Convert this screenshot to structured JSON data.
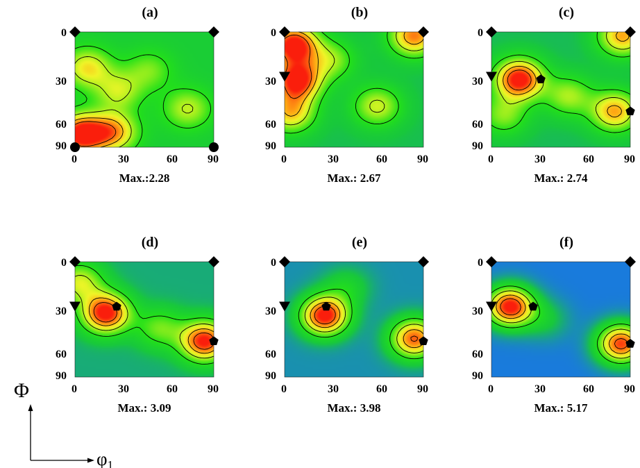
{
  "chart_data": [
    {
      "type": "heatmap",
      "title": "(a)",
      "subtitle": "Max.:2.28",
      "xlabel": "",
      "ylabel": "",
      "x_ticks": [
        "0",
        "30",
        "60",
        "90"
      ],
      "y_ticks": [
        "0",
        "30",
        "60",
        "90"
      ],
      "xlim": [
        0,
        90
      ],
      "ylim": [
        0,
        90
      ],
      "hotspots": [
        {
          "x": 4,
          "y": 80,
          "value": 2.28
        },
        {
          "x": 25,
          "y": 78,
          "value": 1.7
        },
        {
          "x": 8,
          "y": 28,
          "value": 1.5
        },
        {
          "x": 28,
          "y": 46,
          "value": 1.3
        },
        {
          "x": 73,
          "y": 60,
          "value": 1.3
        },
        {
          "x": 48,
          "y": 30,
          "value": 1.1
        }
      ],
      "markers": [
        {
          "shape": "diamond",
          "x": 0,
          "y": 0
        },
        {
          "shape": "diamond",
          "x": 90,
          "y": 0
        },
        {
          "shape": "circle",
          "x": 0,
          "y": 90
        },
        {
          "shape": "circle",
          "x": 90,
          "y": 90
        }
      ]
    },
    {
      "type": "heatmap",
      "title": "(b)",
      "subtitle": "Max.: 2.67",
      "xlabel": "",
      "ylabel": "",
      "x_ticks": [
        "0",
        "30",
        "60",
        "90"
      ],
      "y_ticks": [
        "0",
        "30",
        "60",
        "90"
      ],
      "xlim": [
        0,
        90
      ],
      "ylim": [
        0,
        90
      ],
      "hotspots": [
        {
          "x": 6,
          "y": 10,
          "value": 2.67
        },
        {
          "x": 8,
          "y": 38,
          "value": 2.6
        },
        {
          "x": 84,
          "y": 3,
          "value": 2.2
        },
        {
          "x": 4,
          "y": 63,
          "value": 1.9
        },
        {
          "x": 60,
          "y": 58,
          "value": 1.6
        },
        {
          "x": 30,
          "y": 22,
          "value": 1.4
        }
      ],
      "markers": [
        {
          "shape": "diamond",
          "x": 0,
          "y": 0
        },
        {
          "shape": "diamond",
          "x": 90,
          "y": 0
        },
        {
          "shape": "triangle",
          "x": 0,
          "y": 35
        }
      ]
    },
    {
      "type": "heatmap",
      "title": "(c)",
      "subtitle": "Max.: 2.74",
      "xlabel": "",
      "ylabel": "",
      "x_ticks": [
        "0",
        "30",
        "60",
        "90"
      ],
      "y_ticks": [
        "0",
        "30",
        "60",
        "90"
      ],
      "xlim": [
        0,
        90
      ],
      "ylim": [
        0,
        90
      ],
      "hotspots": [
        {
          "x": 18,
          "y": 37,
          "value": 2.74
        },
        {
          "x": 85,
          "y": 3,
          "value": 2.1
        },
        {
          "x": 80,
          "y": 62,
          "value": 2.1
        },
        {
          "x": 50,
          "y": 50,
          "value": 1.5
        },
        {
          "x": 8,
          "y": 65,
          "value": 1.4
        }
      ],
      "markers": [
        {
          "shape": "diamond",
          "x": 0,
          "y": 0
        },
        {
          "shape": "diamond",
          "x": 90,
          "y": 0
        },
        {
          "shape": "triangle",
          "x": 0,
          "y": 35
        },
        {
          "shape": "pentagon",
          "x": 32,
          "y": 37
        },
        {
          "shape": "pentagon",
          "x": 90,
          "y": 62
        }
      ]
    },
    {
      "type": "heatmap",
      "title": "(d)",
      "subtitle": "Max.: 3.09",
      "xlabel": "",
      "ylabel": "",
      "x_ticks": [
        "0",
        "30",
        "60",
        "90"
      ],
      "y_ticks": [
        "0",
        "30",
        "60",
        "90"
      ],
      "xlim": [
        0,
        90
      ],
      "ylim": [
        0,
        90
      ],
      "hotspots": [
        {
          "x": 20,
          "y": 40,
          "value": 3.09
        },
        {
          "x": 84,
          "y": 62,
          "value": 3.0
        },
        {
          "x": 3,
          "y": 16,
          "value": 1.9
        },
        {
          "x": 55,
          "y": 52,
          "value": 1.5
        }
      ],
      "markers": [
        {
          "shape": "diamond",
          "x": 0,
          "y": 0
        },
        {
          "shape": "diamond",
          "x": 90,
          "y": 0
        },
        {
          "shape": "triangle",
          "x": 0,
          "y": 35
        },
        {
          "shape": "pentagon",
          "x": 27,
          "y": 35
        },
        {
          "shape": "pentagon",
          "x": 90,
          "y": 62
        }
      ]
    },
    {
      "type": "heatmap",
      "title": "(e)",
      "subtitle": "Max.: 3.98",
      "xlabel": "",
      "ylabel": "",
      "x_ticks": [
        "0",
        "30",
        "60",
        "90"
      ],
      "y_ticks": [
        "0",
        "30",
        "60",
        "90"
      ],
      "xlim": [
        0,
        90
      ],
      "ylim": [
        0,
        90
      ],
      "hotspots": [
        {
          "x": 26,
          "y": 42,
          "value": 3.98
        },
        {
          "x": 84,
          "y": 60,
          "value": 3.5
        },
        {
          "x": 40,
          "y": 20,
          "value": 1.3
        }
      ],
      "markers": [
        {
          "shape": "diamond",
          "x": 0,
          "y": 0
        },
        {
          "shape": "diamond",
          "x": 90,
          "y": 0
        },
        {
          "shape": "triangle",
          "x": 0,
          "y": 35
        },
        {
          "shape": "pentagon",
          "x": 27,
          "y": 35
        },
        {
          "shape": "pentagon",
          "x": 90,
          "y": 62
        }
      ]
    },
    {
      "type": "heatmap",
      "title": "(f)",
      "subtitle": "Max.: 5.17",
      "xlabel": "",
      "ylabel": "",
      "x_ticks": [
        "0",
        "30",
        "60",
        "90"
      ],
      "y_ticks": [
        "0",
        "30",
        "60",
        "90"
      ],
      "xlim": [
        0,
        90
      ],
      "ylim": [
        0,
        90
      ],
      "hotspots": [
        {
          "x": 12,
          "y": 35,
          "value": 5.17
        },
        {
          "x": 84,
          "y": 64,
          "value": 4.8
        },
        {
          "x": 35,
          "y": 45,
          "value": 1.4
        }
      ],
      "markers": [
        {
          "shape": "diamond",
          "x": 0,
          "y": 0
        },
        {
          "shape": "diamond",
          "x": 90,
          "y": 0
        },
        {
          "shape": "triangle",
          "x": 0,
          "y": 35
        },
        {
          "shape": "pentagon",
          "x": 27,
          "y": 35
        },
        {
          "shape": "pentagon",
          "x": 90,
          "y": 64
        }
      ]
    }
  ],
  "axes_legend": {
    "vertical": "Φ",
    "horizontal": "φ",
    "horizontal_subscript": "1"
  },
  "colors": {
    "low": "#1a3fc8",
    "mid": "#18d818",
    "high": "#ff2a10",
    "line": "#000000"
  }
}
